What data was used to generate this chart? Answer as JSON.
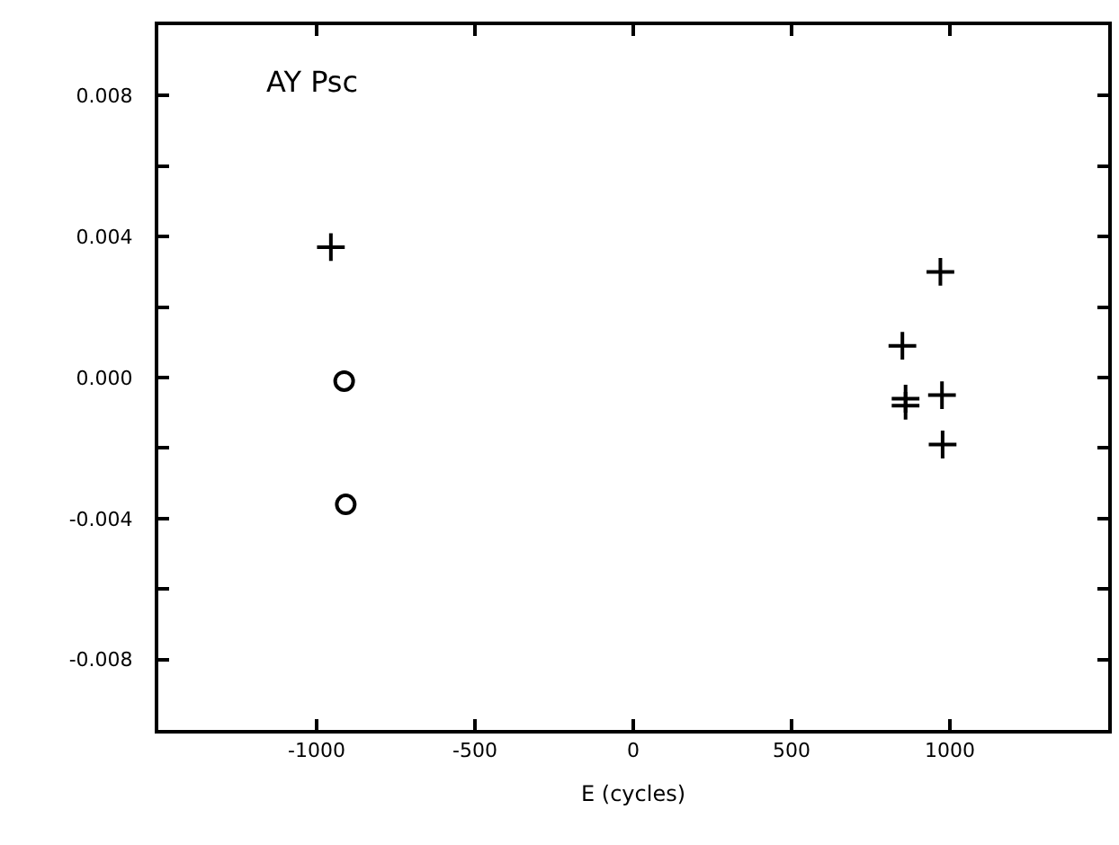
{
  "chart_data": {
    "type": "scatter",
    "xlabel": "E (cycles)",
    "annotations": [
      "AY Psc"
    ],
    "xlim": [
      -1500,
      1500
    ],
    "xticks": [
      -1000,
      -500,
      0,
      500,
      1000
    ],
    "ylim": [
      -0.01,
      0.01
    ],
    "yticks": [
      {
        "value": -0.01,
        "label": null
      },
      -0.008,
      {
        "value": -0.006,
        "label": null
      },
      -0.004,
      {
        "value": -0.002,
        "label": null
      },
      {
        "value": 0,
        "label": "0.000"
      },
      {
        "value": 0.002,
        "label": null
      },
      0.004,
      {
        "value": 0.006,
        "label": null
      },
      0.008,
      {
        "value": 0.01,
        "label": null
      }
    ],
    "grid": false,
    "series": [
      {
        "color": "#000000",
        "marker": "cross",
        "x": [
          -955,
          970,
          850,
          860,
          860,
          975,
          977
        ],
        "values": [
          0.0037,
          0.003,
          0.0009,
          -0.0006,
          -0.0008,
          -0.0005,
          -0.0019
        ]
      },
      {
        "color": "#000000",
        "marker": "circle",
        "x": [
          -913,
          -908
        ],
        "values": [
          -0.0001,
          -0.0036
        ]
      }
    ]
  }
}
